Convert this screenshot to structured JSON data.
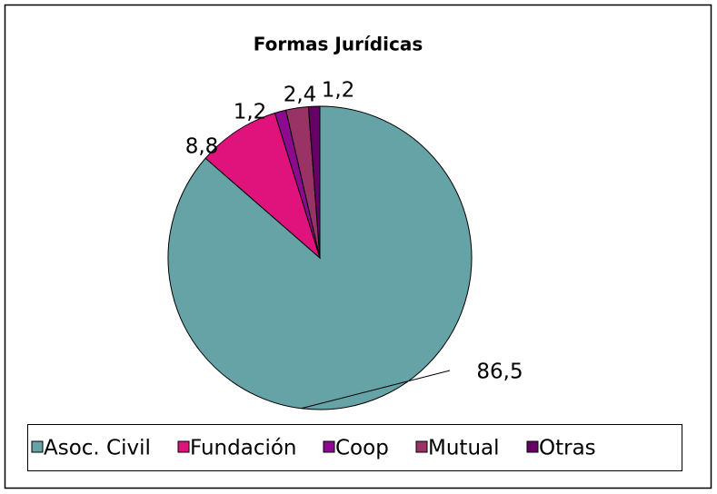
{
  "chart_data": {
    "type": "pie",
    "title": "Formas Jurídicas",
    "categories": [
      "Asoc. Civil",
      "Fundación",
      "Coop",
      "Mutual",
      "Otras"
    ],
    "values": [
      86.5,
      8.8,
      1.2,
      2.4,
      1.2
    ],
    "value_labels": [
      "86,5",
      "8,8",
      "1,2",
      "2,4",
      "1,2"
    ],
    "colors": [
      "#66a3a6",
      "#e0137c",
      "#8b0a8f",
      "#993366",
      "#660066"
    ],
    "legend": "bottom"
  }
}
